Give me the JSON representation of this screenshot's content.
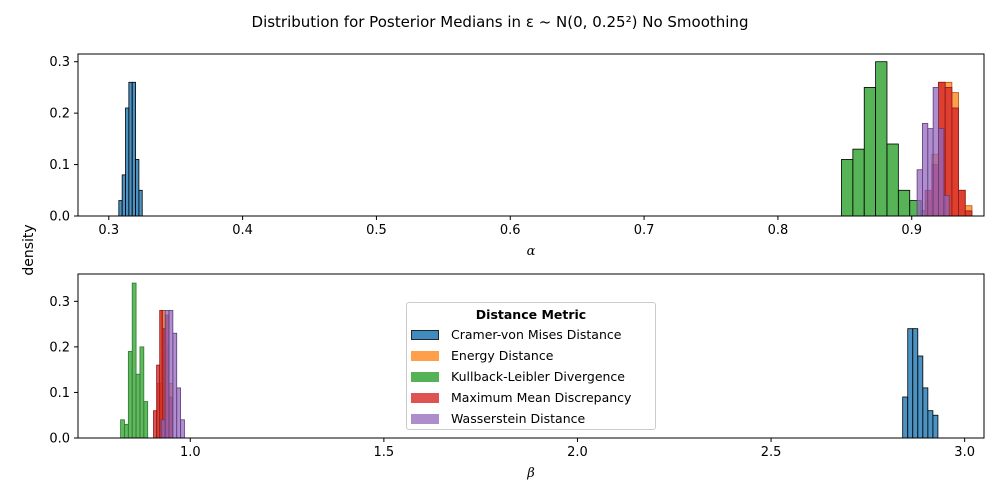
{
  "title": "Distribution for Posterior Medians in ε ~ N(0, 0.25²) No Smoothing",
  "ylabel_shared": "density",
  "legend": {
    "title": "Distance Metric",
    "entries": [
      {
        "label": "Cramer-von Mises Distance",
        "color": "#1f77b4"
      },
      {
        "label": "Energy Distance",
        "color": "#ff7f0e"
      },
      {
        "label": "Kullback-Leibler Divergence",
        "color": "#2ca02c"
      },
      {
        "label": "Maximum Mean Discrepancy",
        "color": "#d62728"
      },
      {
        "label": "Wasserstein Distance",
        "color": "#9467bd"
      }
    ]
  },
  "chart_data": [
    {
      "type": "bar",
      "xlabel": "α",
      "ylabel": "",
      "xlim": [
        0.277,
        0.954
      ],
      "ylim": [
        0,
        0.315
      ],
      "xticks": [
        0.3,
        0.4,
        0.5,
        0.6,
        0.7,
        0.8,
        0.9
      ],
      "xtick_labels": [
        "0.3",
        "0.4",
        "0.5",
        "0.6",
        "0.7",
        "0.8",
        "0.9"
      ],
      "yticks": [
        0.0,
        0.1,
        0.2,
        0.3
      ],
      "ytick_labels": [
        "0.0",
        "0.1",
        "0.2",
        "0.3"
      ],
      "series": [
        {
          "name": "Cramer-von Mises Distance",
          "color": "#1f77b4",
          "edge": "#000000",
          "alpha": 0.8,
          "bins": [
            [
              0.3075,
              0.31,
              0.03
            ],
            [
              0.31,
              0.3125,
              0.08
            ],
            [
              0.3125,
              0.315,
              0.21
            ],
            [
              0.315,
              0.3175,
              0.26
            ],
            [
              0.3175,
              0.32,
              0.26
            ],
            [
              0.32,
              0.3225,
              0.11
            ],
            [
              0.3225,
              0.325,
              0.05
            ]
          ]
        },
        {
          "name": "Kullback-Leibler Divergence",
          "color": "#2ca02c",
          "edge": "#000000",
          "alpha": 0.8,
          "bins": [
            [
              0.8475,
              0.856,
              0.11
            ],
            [
              0.856,
              0.8645,
              0.13
            ],
            [
              0.8645,
              0.873,
              0.25
            ],
            [
              0.873,
              0.8815,
              0.3
            ],
            [
              0.8815,
              0.89,
              0.14
            ],
            [
              0.89,
              0.8985,
              0.05
            ],
            [
              0.8985,
              0.907,
              0.03
            ],
            [
              0.907,
              0.9155,
              0.01
            ]
          ]
        },
        {
          "name": "Energy Distance",
          "color": "#ff7f0e",
          "edge": "#a9561b",
          "alpha": 0.75,
          "bins": [
            [
              0.91,
              0.915,
              0.03
            ],
            [
              0.915,
              0.92,
              0.12
            ],
            [
              0.92,
              0.925,
              0.26
            ],
            [
              0.925,
              0.93,
              0.26
            ],
            [
              0.93,
              0.935,
              0.24
            ],
            [
              0.935,
              0.94,
              0.05
            ],
            [
              0.94,
              0.945,
              0.02
            ]
          ]
        },
        {
          "name": "Maximum Mean Discrepancy",
          "color": "#d62728",
          "edge": "#8e1a1a",
          "alpha": 0.8,
          "bins": [
            [
              0.91,
              0.915,
              0.05
            ],
            [
              0.915,
              0.92,
              0.1
            ],
            [
              0.92,
              0.925,
              0.26
            ],
            [
              0.925,
              0.93,
              0.25
            ],
            [
              0.93,
              0.935,
              0.21
            ],
            [
              0.935,
              0.94,
              0.05
            ],
            [
              0.94,
              0.945,
              0.01
            ]
          ]
        },
        {
          "name": "Wasserstein Distance",
          "color": "#9467bd",
          "edge": "#5c3f7a",
          "alpha": 0.75,
          "bins": [
            [
              0.904,
              0.908,
              0.09
            ],
            [
              0.908,
              0.912,
              0.18
            ],
            [
              0.912,
              0.916,
              0.17
            ],
            [
              0.916,
              0.92,
              0.25
            ],
            [
              0.92,
              0.924,
              0.17
            ],
            [
              0.924,
              0.928,
              0.04
            ]
          ]
        }
      ]
    },
    {
      "type": "bar",
      "xlabel": "β",
      "ylabel": "",
      "xlim": [
        0.71,
        3.05
      ],
      "ylim": [
        0,
        0.36
      ],
      "xticks": [
        1.0,
        1.5,
        2.0,
        2.5,
        3.0
      ],
      "xtick_labels": [
        "1.0",
        "1.5",
        "2.0",
        "2.5",
        "3.0"
      ],
      "yticks": [
        0.0,
        0.1,
        0.2,
        0.3
      ],
      "ytick_labels": [
        "0.0",
        "0.1",
        "0.2",
        "0.3"
      ],
      "series": [
        {
          "name": "Kullback-Leibler Divergence",
          "color": "#2ca02c",
          "edge": "#2a7a2a",
          "alpha": 0.75,
          "bins": [
            [
              0.82,
              0.83,
              0.04
            ],
            [
              0.83,
              0.84,
              0.03
            ],
            [
              0.84,
              0.85,
              0.19
            ],
            [
              0.85,
              0.86,
              0.34
            ],
            [
              0.86,
              0.87,
              0.14
            ],
            [
              0.87,
              0.88,
              0.2
            ],
            [
              0.88,
              0.89,
              0.08
            ]
          ]
        },
        {
          "name": "Energy Distance",
          "color": "#ff7f0e",
          "edge": "#a9561b",
          "alpha": 0.75,
          "bins": [
            [
              0.915,
              0.925,
              0.12
            ],
            [
              0.925,
              0.935,
              0.28
            ],
            [
              0.935,
              0.945,
              0.2
            ],
            [
              0.945,
              0.955,
              0.12
            ]
          ]
        },
        {
          "name": "Maximum Mean Discrepancy",
          "color": "#d62728",
          "edge": "#8e1a1a",
          "alpha": 0.8,
          "bins": [
            [
              0.905,
              0.913,
              0.06
            ],
            [
              0.913,
              0.921,
              0.16
            ],
            [
              0.921,
              0.929,
              0.28
            ],
            [
              0.929,
              0.937,
              0.24
            ],
            [
              0.937,
              0.945,
              0.27
            ],
            [
              0.945,
              0.953,
              0.09
            ]
          ]
        },
        {
          "name": "Wasserstein Distance",
          "color": "#9467bd",
          "edge": "#5c3f7a",
          "alpha": 0.75,
          "bins": [
            [
              0.925,
              0.935,
              0.04
            ],
            [
              0.935,
              0.945,
              0.28
            ],
            [
              0.945,
              0.955,
              0.28
            ],
            [
              0.955,
              0.965,
              0.23
            ],
            [
              0.965,
              0.975,
              0.11
            ],
            [
              0.975,
              0.985,
              0.04
            ]
          ]
        },
        {
          "name": "Cramer-von Mises Distance",
          "color": "#1f77b4",
          "edge": "#000000",
          "alpha": 0.8,
          "bins": [
            [
              2.84,
              2.853,
              0.09
            ],
            [
              2.853,
              2.866,
              0.24
            ],
            [
              2.866,
              2.879,
              0.24
            ],
            [
              2.879,
              2.892,
              0.18
            ],
            [
              2.892,
              2.905,
              0.11
            ],
            [
              2.905,
              2.918,
              0.06
            ],
            [
              2.918,
              2.931,
              0.05
            ]
          ]
        }
      ]
    }
  ]
}
